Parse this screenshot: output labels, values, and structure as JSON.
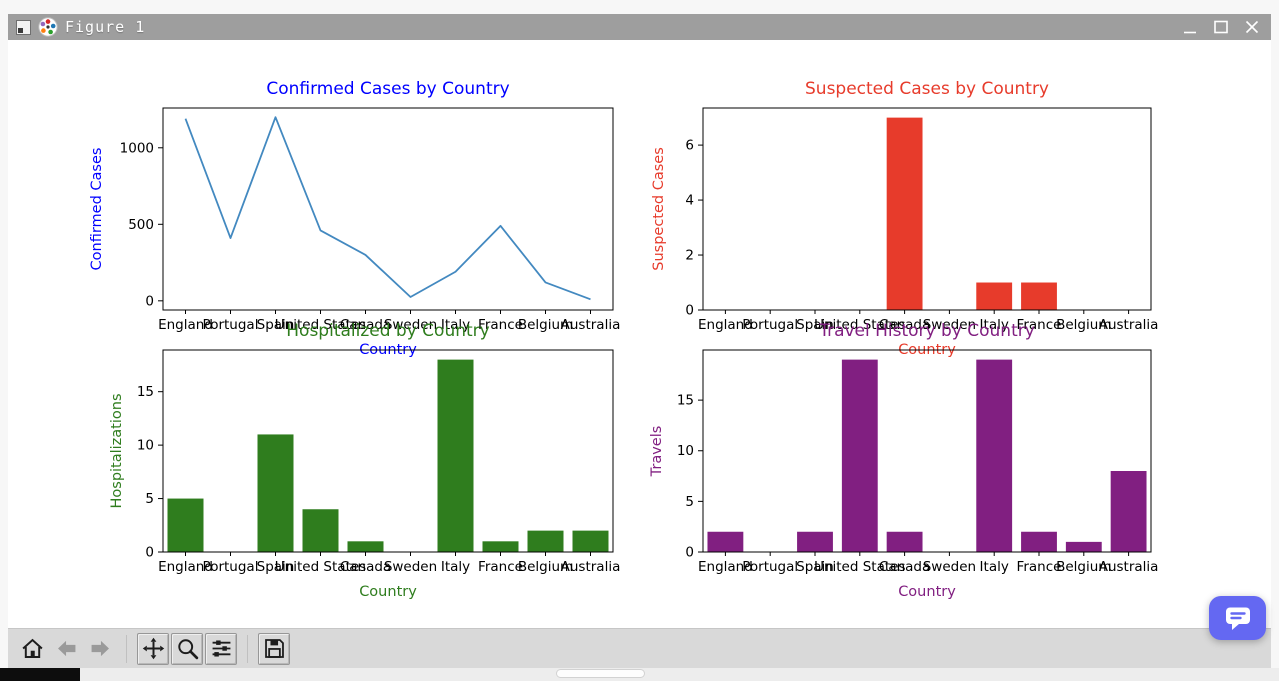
{
  "window": {
    "title": "Figure 1",
    "icon": "matplotlib-icon",
    "controls": [
      {
        "name": "minimize",
        "icon": "minimize-icon"
      },
      {
        "name": "maximize",
        "icon": "maximize-icon"
      },
      {
        "name": "close",
        "icon": "close-icon"
      }
    ]
  },
  "toolbar": {
    "buttons": [
      {
        "name": "home",
        "icon": "home-icon",
        "disabled": false
      },
      {
        "name": "back",
        "icon": "back-icon",
        "disabled": true
      },
      {
        "name": "forward",
        "icon": "forward-icon",
        "disabled": true
      },
      {
        "name": "pan",
        "icon": "pan-icon",
        "disabled": false
      },
      {
        "name": "zoom",
        "icon": "zoom-icon",
        "disabled": false
      },
      {
        "name": "subplots",
        "icon": "subplots-icon",
        "disabled": false
      },
      {
        "name": "save",
        "icon": "save-icon",
        "disabled": false
      }
    ]
  },
  "overlay": {
    "name": "chat",
    "icon": "chat-icon",
    "color": "#6468f2"
  },
  "chart_data": [
    {
      "id": "confirmed",
      "type": "line",
      "title": "Confirmed Cases by Country",
      "xlabel": "Country",
      "ylabel": "Confirmed Cases",
      "color": "#4389c0",
      "label_color": "#0000ff",
      "categories": [
        "England",
        "Portugal",
        "Spain",
        "United States",
        "Canada",
        "Sweden",
        "Italy",
        "France",
        "Belgium",
        "Australia"
      ],
      "values": [
        1190,
        410,
        1200,
        460,
        300,
        25,
        190,
        490,
        120,
        10
      ],
      "yticks": [
        0,
        500,
        1000
      ],
      "ylim": [
        -60,
        1260
      ],
      "grid": false,
      "legend": false
    },
    {
      "id": "suspected",
      "type": "bar",
      "title": "Suspected Cases by Country",
      "xlabel": "Country",
      "ylabel": "Suspected Cases",
      "color": "#e73b2b",
      "label_color": "#e73b2b",
      "categories": [
        "England",
        "Portugal",
        "Spain",
        "United States",
        "Canada",
        "Sweden",
        "Italy",
        "France",
        "Belgium",
        "Australia"
      ],
      "values": [
        0,
        0,
        0,
        0,
        7,
        0,
        1,
        1,
        0,
        0
      ],
      "yticks": [
        0,
        2,
        4,
        6
      ],
      "ylim": [
        0,
        7.35
      ],
      "grid": false,
      "legend": false
    },
    {
      "id": "hospitalized",
      "type": "bar",
      "title": "Hospitalized by Country",
      "xlabel": "Country",
      "ylabel": "Hospitalizations",
      "color": "#2f7d1e",
      "label_color": "#2f7d1e",
      "categories": [
        "England",
        "Portugal",
        "Spain",
        "United States",
        "Canada",
        "Sweden",
        "Italy",
        "France",
        "Belgium",
        "Australia"
      ],
      "values": [
        5,
        0,
        11,
        4,
        1,
        0,
        18,
        1,
        2,
        2
      ],
      "yticks": [
        0,
        5,
        10,
        15
      ],
      "ylim": [
        0,
        18.9
      ],
      "grid": false,
      "legend": false
    },
    {
      "id": "travel",
      "type": "bar",
      "title": "Travel History by Country",
      "xlabel": "Country",
      "ylabel": "Travels",
      "color": "#811f81",
      "label_color": "#811f81",
      "categories": [
        "England",
        "Portugal",
        "Spain",
        "United States",
        "Canada",
        "Sweden",
        "Italy",
        "France",
        "Belgium",
        "Australia"
      ],
      "values": [
        2,
        0,
        2,
        19,
        2,
        0,
        19,
        2,
        1,
        8
      ],
      "yticks": [
        0,
        5,
        10,
        15
      ],
      "ylim": [
        0,
        19.95
      ],
      "grid": false,
      "legend": false
    }
  ]
}
